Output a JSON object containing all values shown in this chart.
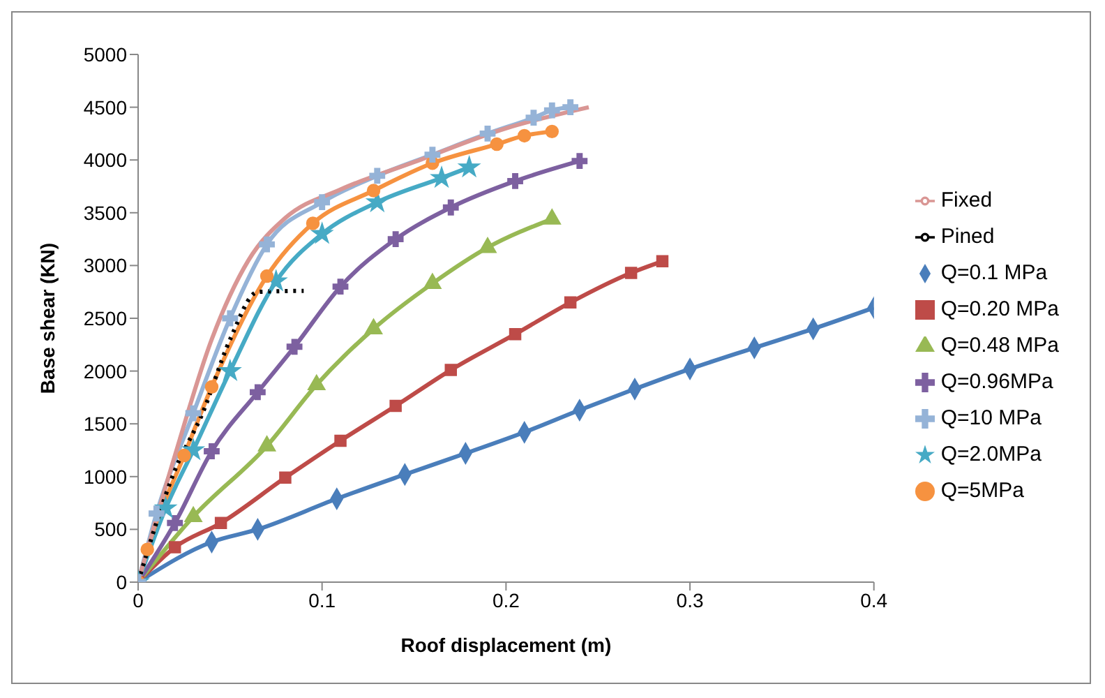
{
  "chart_data": {
    "type": "line",
    "xlabel": "Roof displacement (m)",
    "ylabel": "Base shear (KN)",
    "xlim": [
      0,
      0.4
    ],
    "xticks": [
      0,
      0.1,
      0.2,
      0.3,
      0.4
    ],
    "ylim": [
      0,
      5000
    ],
    "yticks": [
      0,
      500,
      1000,
      1500,
      2000,
      2500,
      3000,
      3500,
      4000,
      4500,
      5000
    ],
    "grid": false,
    "legend": "right",
    "series": [
      {
        "name": "Q=0.1 MPa",
        "color": "#4a7ebb",
        "marker": "diamond",
        "x": [
          0,
          0.04,
          0.065,
          0.108,
          0.145,
          0.178,
          0.21,
          0.24,
          0.27,
          0.3,
          0.335,
          0.367,
          0.4
        ],
        "values": [
          0,
          380,
          500,
          790,
          1020,
          1220,
          1420,
          1630,
          1830,
          2020,
          2220,
          2400,
          2600
        ]
      },
      {
        "name": "Q=0.20 MPa",
        "color": "#be4b48",
        "marker": "square",
        "x": [
          0,
          0.02,
          0.045,
          0.08,
          0.11,
          0.14,
          0.17,
          0.205,
          0.235,
          0.268,
          0.285
        ],
        "values": [
          0,
          330,
          560,
          990,
          1340,
          1670,
          2010,
          2350,
          2650,
          2930,
          3040
        ]
      },
      {
        "name": "Q=0.48 MPa",
        "color": "#98b954",
        "marker": "triangle",
        "x": [
          0,
          0.03,
          0.07,
          0.097,
          0.128,
          0.16,
          0.19,
          0.225
        ],
        "values": [
          0,
          620,
          1290,
          1870,
          2400,
          2830,
          3170,
          3440
        ]
      },
      {
        "name": "Q=0.96MPa",
        "color": "#7d60a0",
        "marker": "cross",
        "x": [
          0,
          0.02,
          0.04,
          0.065,
          0.085,
          0.11,
          0.14,
          0.17,
          0.205,
          0.24
        ],
        "values": [
          0,
          560,
          1240,
          1800,
          2230,
          2800,
          3250,
          3550,
          3800,
          3990
        ]
      },
      {
        "name": "Q=2.0MPa",
        "color": "#46aac5",
        "marker": "star",
        "x": [
          0,
          0.015,
          0.03,
          0.05,
          0.075,
          0.1,
          0.13,
          0.165,
          0.18
        ],
        "values": [
          0,
          700,
          1250,
          2000,
          2850,
          3300,
          3600,
          3830,
          3930
        ]
      },
      {
        "name": "Q=5MPa",
        "color": "#f69240",
        "marker": "circle",
        "x": [
          0,
          0.005,
          0.025,
          0.04,
          0.07,
          0.095,
          0.128,
          0.16,
          0.195,
          0.21,
          0.225
        ],
        "values": [
          0,
          310,
          1200,
          1850,
          2900,
          3400,
          3710,
          3970,
          4150,
          4230,
          4270
        ]
      },
      {
        "name": "Q=10 MPa",
        "color": "#95b3d7",
        "marker": "cross",
        "x": [
          0,
          0.01,
          0.03,
          0.05,
          0.07,
          0.1,
          0.13,
          0.16,
          0.19,
          0.215,
          0.225,
          0.235
        ],
        "values": [
          0,
          650,
          1600,
          2500,
          3200,
          3600,
          3850,
          4050,
          4250,
          4400,
          4470,
          4500
        ]
      },
      {
        "name": "Fixed",
        "color": "#d99694",
        "marker": "none",
        "x": [
          0,
          0.02,
          0.04,
          0.06,
          0.08,
          0.11,
          0.15,
          0.2,
          0.245
        ],
        "values": [
          0,
          1200,
          2300,
          3050,
          3450,
          3720,
          3980,
          4300,
          4500
        ]
      },
      {
        "name": "Pined",
        "color": "#000000",
        "marker": "none",
        "line_style": "dotted",
        "x": [
          0,
          0.02,
          0.035,
          0.05,
          0.065,
          0.09
        ],
        "values": [
          0,
          1060,
          1600,
          2300,
          2750,
          2760
        ]
      }
    ]
  }
}
